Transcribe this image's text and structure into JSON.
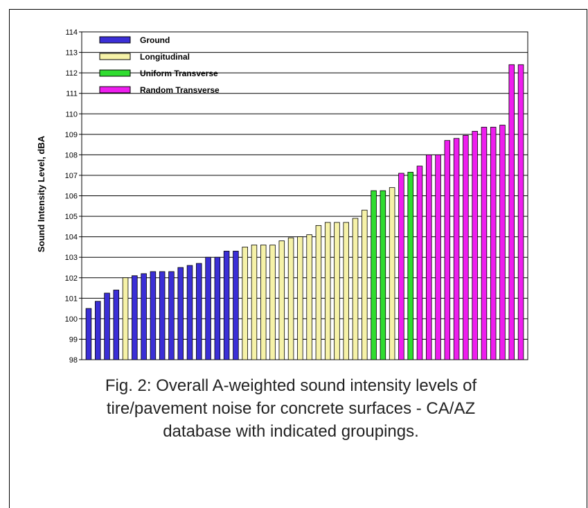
{
  "chart_data": {
    "type": "bar",
    "ylabel": "Sound Intensity Level, dBA",
    "ylim": [
      98,
      114
    ],
    "yticks": [
      98,
      99,
      100,
      101,
      102,
      103,
      104,
      105,
      106,
      107,
      108,
      109,
      110,
      111,
      112,
      113,
      114
    ],
    "grid": true,
    "legend_position": "top-left",
    "legend": [
      {
        "name": "Ground",
        "color": "#3b2fd6"
      },
      {
        "name": "Longitudinal",
        "color": "#f6f2a8"
      },
      {
        "name": "Uniform Transverse",
        "color": "#2fdc2f"
      },
      {
        "name": "Random Transverse",
        "color": "#ee1eee"
      }
    ],
    "bars": [
      {
        "value": 100.5,
        "group": "Ground"
      },
      {
        "value": 100.85,
        "group": "Ground"
      },
      {
        "value": 101.25,
        "group": "Ground"
      },
      {
        "value": 101.4,
        "group": "Ground"
      },
      {
        "value": 102.0,
        "group": "Longitudinal"
      },
      {
        "value": 102.1,
        "group": "Ground"
      },
      {
        "value": 102.2,
        "group": "Ground"
      },
      {
        "value": 102.3,
        "group": "Ground"
      },
      {
        "value": 102.3,
        "group": "Ground"
      },
      {
        "value": 102.3,
        "group": "Ground"
      },
      {
        "value": 102.5,
        "group": "Ground"
      },
      {
        "value": 102.6,
        "group": "Ground"
      },
      {
        "value": 102.7,
        "group": "Ground"
      },
      {
        "value": 103.0,
        "group": "Ground"
      },
      {
        "value": 103.0,
        "group": "Ground"
      },
      {
        "value": 103.3,
        "group": "Ground"
      },
      {
        "value": 103.3,
        "group": "Ground"
      },
      {
        "value": 103.5,
        "group": "Longitudinal"
      },
      {
        "value": 103.6,
        "group": "Longitudinal"
      },
      {
        "value": 103.6,
        "group": "Longitudinal"
      },
      {
        "value": 103.6,
        "group": "Longitudinal"
      },
      {
        "value": 103.8,
        "group": "Longitudinal"
      },
      {
        "value": 103.95,
        "group": "Longitudinal"
      },
      {
        "value": 104.0,
        "group": "Longitudinal"
      },
      {
        "value": 104.1,
        "group": "Longitudinal"
      },
      {
        "value": 104.55,
        "group": "Longitudinal"
      },
      {
        "value": 104.7,
        "group": "Longitudinal"
      },
      {
        "value": 104.7,
        "group": "Longitudinal"
      },
      {
        "value": 104.7,
        "group": "Longitudinal"
      },
      {
        "value": 104.9,
        "group": "Longitudinal"
      },
      {
        "value": 105.3,
        "group": "Longitudinal"
      },
      {
        "value": 106.25,
        "group": "Uniform Transverse"
      },
      {
        "value": 106.25,
        "group": "Uniform Transverse"
      },
      {
        "value": 106.4,
        "group": "Longitudinal"
      },
      {
        "value": 107.1,
        "group": "Random Transverse"
      },
      {
        "value": 107.15,
        "group": "Uniform Transverse"
      },
      {
        "value": 107.45,
        "group": "Random Transverse"
      },
      {
        "value": 108.0,
        "group": "Random Transverse"
      },
      {
        "value": 108.0,
        "group": "Random Transverse"
      },
      {
        "value": 108.7,
        "group": "Random Transverse"
      },
      {
        "value": 108.8,
        "group": "Random Transverse"
      },
      {
        "value": 108.95,
        "group": "Random Transverse"
      },
      {
        "value": 109.15,
        "group": "Random Transverse"
      },
      {
        "value": 109.35,
        "group": "Random Transverse"
      },
      {
        "value": 109.35,
        "group": "Random Transverse"
      },
      {
        "value": 109.45,
        "group": "Random Transverse"
      },
      {
        "value": 112.4,
        "group": "Random Transverse"
      },
      {
        "value": 112.4,
        "group": "Random Transverse"
      }
    ]
  },
  "caption": "Fig. 2:  Overall A-weighted sound intensity levels of\ntire/pavement noise for concrete surfaces - CA/AZ\ndatabase with indicated groupings."
}
